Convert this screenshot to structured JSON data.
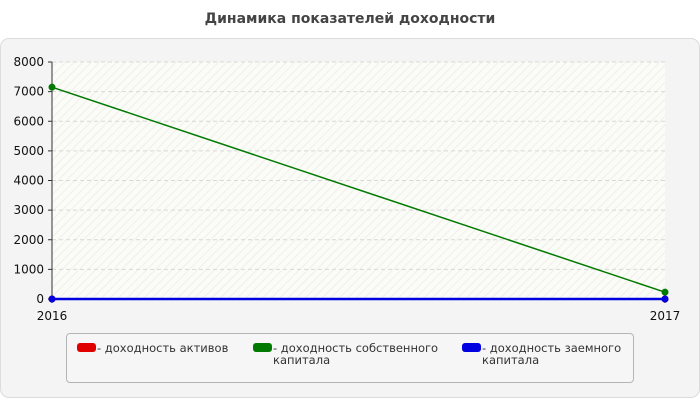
{
  "chart_data": {
    "type": "line",
    "title": "Динамика показателей доходности",
    "x": [
      "2016",
      "2017"
    ],
    "ylim": [
      0,
      8000
    ],
    "yticks": [
      0,
      1000,
      2000,
      3000,
      4000,
      5000,
      6000,
      7000,
      8000
    ],
    "grid": true,
    "legend_position": "bottom",
    "series": [
      {
        "name": "- доходность активов",
        "color": "#e00000",
        "values": [
          0,
          0
        ]
      },
      {
        "name": "- доходность собственного\nкапитала",
        "color": "#007a00",
        "values": [
          7150,
          230
        ]
      },
      {
        "name": "- доходность заемного\nкапитала",
        "color": "#0000e0",
        "values": [
          0,
          0
        ]
      }
    ]
  }
}
